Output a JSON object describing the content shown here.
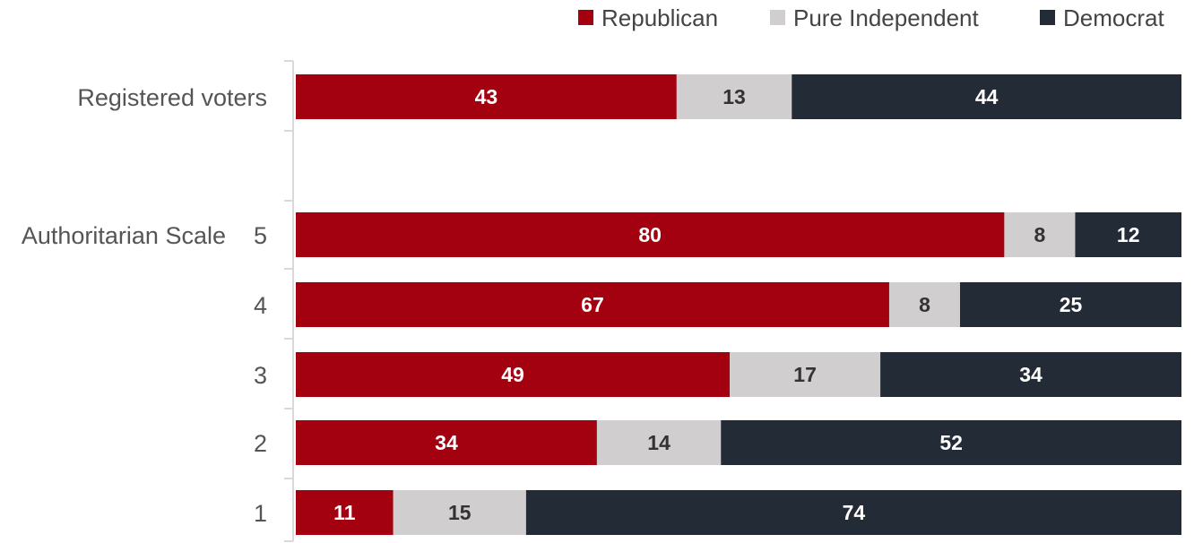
{
  "chart_data": {
    "type": "bar",
    "orientation": "horizontal",
    "stacked": true,
    "title": "",
    "xlabel": "",
    "ylabel": "",
    "xlim": [
      0,
      100
    ],
    "grid": false,
    "legend_position": "top-right",
    "group_label": "Authoritarian Scale",
    "rows": [
      {
        "label": "Registered voters",
        "values": [
          43,
          13,
          44
        ]
      },
      {
        "label": "5",
        "values": [
          80,
          8,
          12
        ]
      },
      {
        "label": "4",
        "values": [
          67,
          8,
          25
        ]
      },
      {
        "label": "3",
        "values": [
          49,
          17,
          34
        ]
      },
      {
        "label": "2",
        "values": [
          34,
          14,
          52
        ]
      },
      {
        "label": "1",
        "values": [
          11,
          15,
          74
        ]
      }
    ],
    "series": [
      {
        "name": "Republican",
        "color": "#A30010",
        "label_color": "#ffffff"
      },
      {
        "name": "Pure Independent",
        "color": "#D0CECE",
        "label_color": "#333333"
      },
      {
        "name": "Democrat",
        "color": "#232B36",
        "label_color": "#ffffff"
      }
    ]
  }
}
